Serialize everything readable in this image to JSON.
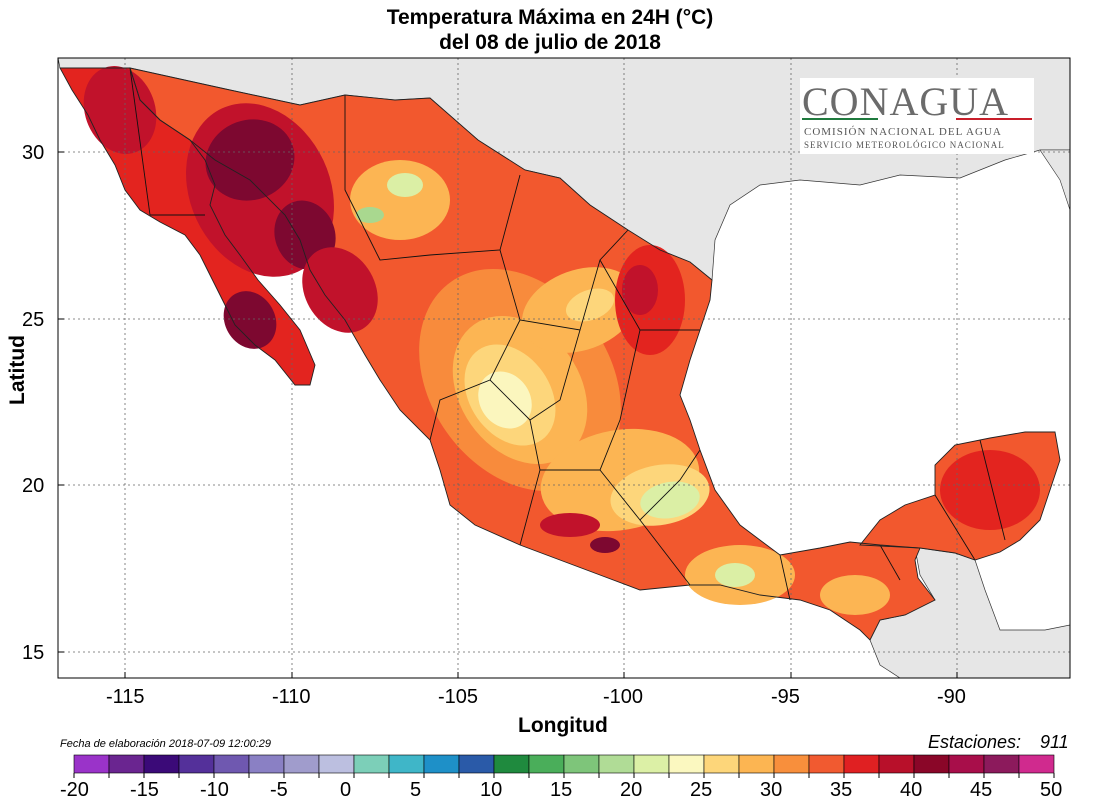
{
  "title": {
    "line1": "Temperatura Máxima en 24H (°C)",
    "line2": "del  08 de julio de 2018"
  },
  "axes": {
    "x_title": "Longitud",
    "y_title": "Latitud",
    "x_ticks": [
      "-115",
      "-110",
      "-105",
      "-100",
      "-95",
      "-90"
    ],
    "y_ticks": [
      "30",
      "25",
      "20",
      "15"
    ]
  },
  "logo": {
    "name": "CONAGUA",
    "line1": "COMISIÓN NACIONAL DEL AGUA",
    "line2": "SERVICIO METEOROLÓGICO NACIONAL"
  },
  "footer": {
    "date_text": "Fecha de elaboración 2018-07-09 12:00:29",
    "stations_label": "Estaciones:",
    "stations_count": "911"
  },
  "colorbar": {
    "labels": [
      "-20",
      "-15",
      "-10",
      "-5",
      "0",
      "5",
      "10",
      "15",
      "20",
      "25",
      "30",
      "35",
      "40",
      "45",
      "50"
    ],
    "colors": [
      "#9a33c9",
      "#6a2590",
      "#3b0a78",
      "#54309a",
      "#6f58b0",
      "#8a80c4",
      "#a09ccc",
      "#bcbfe0",
      "#7ccfb8",
      "#3fb6c8",
      "#1e90c8",
      "#2a5aa8",
      "#1f8a3e",
      "#4aae5a",
      "#7ec57a",
      "#b0dc96",
      "#dcf0a6",
      "#fbf8c0",
      "#fdd67a",
      "#fcb552",
      "#f88f3c",
      "#f15a30",
      "#e02022",
      "#b8102a",
      "#8a0628",
      "#a80e4a",
      "#8c1a5c",
      "#d02a8e"
    ]
  },
  "map": {
    "land_outside": "#e6e6e6",
    "ocean": "#ffffff",
    "colors": {
      "deep": "#7d0830",
      "crimson": "#c1122b",
      "red": "#e3241f",
      "redorange": "#f2582e",
      "orange": "#f88b3c",
      "lightorange": "#fcb553",
      "yellow": "#fdd67b",
      "pale": "#fbf6be",
      "palegreen": "#dbefa5",
      "green": "#a9d88f",
      "midgreen": "#6fbf72"
    }
  }
}
